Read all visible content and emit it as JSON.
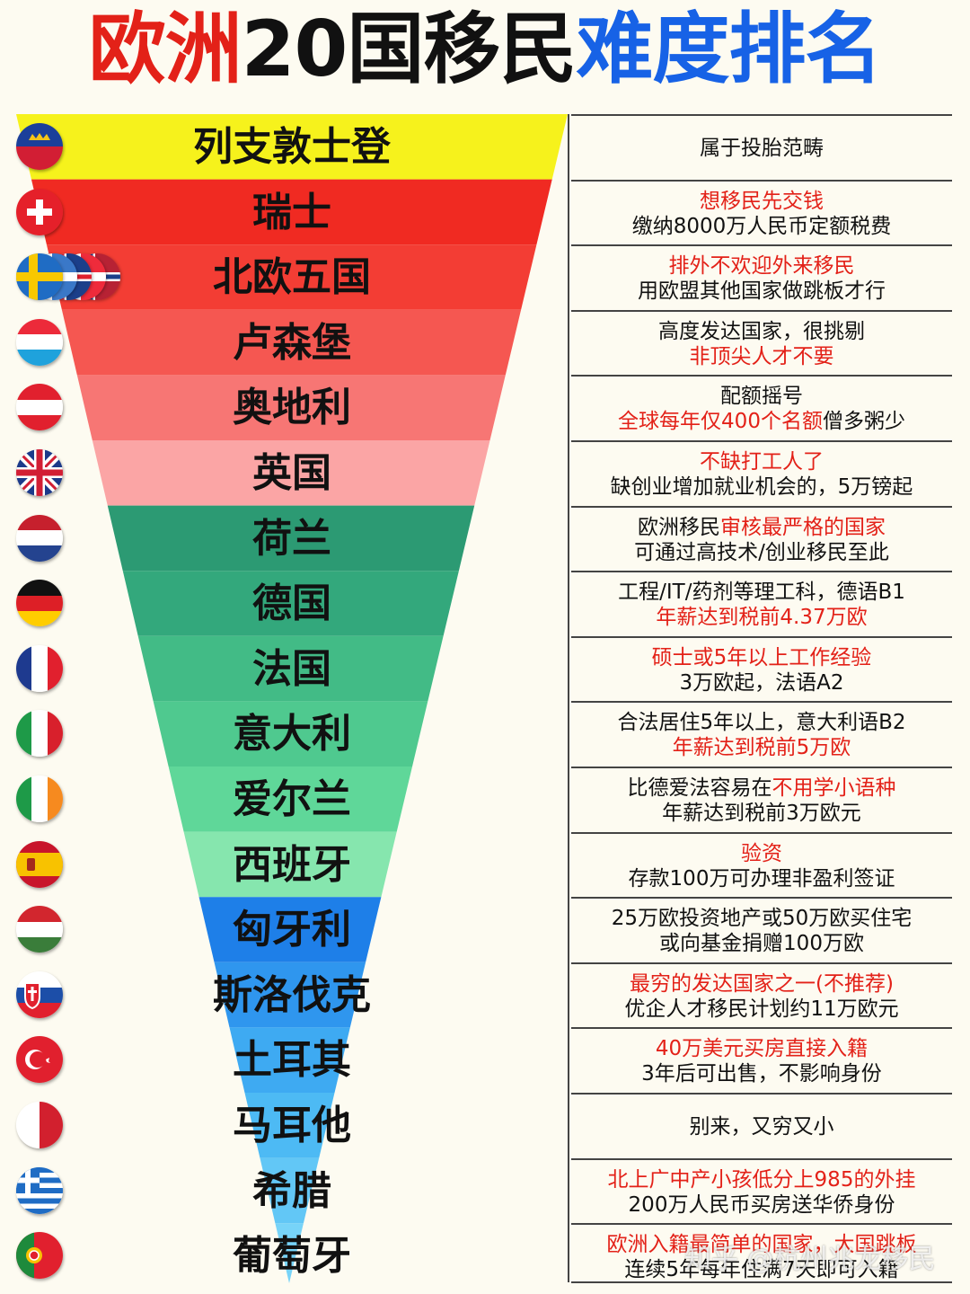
{
  "title": {
    "part1": "欧洲",
    "part2": "20国移民",
    "part3": "难度排名"
  },
  "rows": [
    {
      "country": "列支敦士登",
      "flag": "liechtenstein",
      "lines": [
        {
          "segs": [
            {
              "t": "属于投胎范畴",
              "red": false
            }
          ]
        }
      ]
    },
    {
      "country": "瑞士",
      "flag": "switzerland",
      "lines": [
        {
          "segs": [
            {
              "t": "想移民先交钱",
              "red": true
            }
          ]
        },
        {
          "segs": [
            {
              "t": "缴纳8000万人民币定额税费",
              "red": false
            }
          ]
        }
      ]
    },
    {
      "country": "北欧五国",
      "flag": "nordic",
      "lines": [
        {
          "segs": [
            {
              "t": "排外不欢迎外来移民",
              "red": true
            }
          ]
        },
        {
          "segs": [
            {
              "t": "用欧盟其他国家做跳板才行",
              "red": false
            }
          ]
        }
      ]
    },
    {
      "country": "卢森堡",
      "flag": "luxembourg",
      "lines": [
        {
          "segs": [
            {
              "t": "高度发达国家，很挑剔",
              "red": false
            }
          ]
        },
        {
          "segs": [
            {
              "t": "非顶尖人才不要",
              "red": true
            }
          ]
        }
      ]
    },
    {
      "country": "奥地利",
      "flag": "austria",
      "lines": [
        {
          "segs": [
            {
              "t": "配额摇号",
              "red": false
            }
          ]
        },
        {
          "segs": [
            {
              "t": "全球每年仅400个名额",
              "red": true
            },
            {
              "t": "僧多粥少",
              "red": false
            }
          ]
        }
      ]
    },
    {
      "country": "英国",
      "flag": "uk",
      "lines": [
        {
          "segs": [
            {
              "t": "不缺打工人了",
              "red": true
            }
          ]
        },
        {
          "segs": [
            {
              "t": "缺创业增加就业机会的，5万镑起",
              "red": false
            }
          ]
        }
      ]
    },
    {
      "country": "荷兰",
      "flag": "netherlands",
      "lines": [
        {
          "segs": [
            {
              "t": "欧洲移民",
              "red": false
            },
            {
              "t": "审核最严格的国家",
              "red": true
            }
          ]
        },
        {
          "segs": [
            {
              "t": "可通过高技术/创业移民至此",
              "red": false
            }
          ]
        }
      ]
    },
    {
      "country": "德国",
      "flag": "germany",
      "lines": [
        {
          "segs": [
            {
              "t": "工程/IT/药剂等理工科，德语B1",
              "red": false
            }
          ]
        },
        {
          "segs": [
            {
              "t": "年薪达到税前4.37万欧",
              "red": true
            }
          ]
        }
      ]
    },
    {
      "country": "法国",
      "flag": "france",
      "lines": [
        {
          "segs": [
            {
              "t": "硕士或5年以上工作经验",
              "red": true
            }
          ]
        },
        {
          "segs": [
            {
              "t": "3万欧起，法语A2",
              "red": false
            }
          ]
        }
      ]
    },
    {
      "country": "意大利",
      "flag": "italy",
      "lines": [
        {
          "segs": [
            {
              "t": "合法居住5年以上，意大利语B2",
              "red": false
            }
          ]
        },
        {
          "segs": [
            {
              "t": "年薪达到税前5万欧",
              "red": true
            }
          ]
        }
      ]
    },
    {
      "country": "爱尔兰",
      "flag": "ireland",
      "lines": [
        {
          "segs": [
            {
              "t": "比德爱法容易在",
              "red": false
            },
            {
              "t": "不用学小语种",
              "red": true
            }
          ]
        },
        {
          "segs": [
            {
              "t": "年薪达到税前3万欧元",
              "red": false
            }
          ]
        }
      ]
    },
    {
      "country": "西班牙",
      "flag": "spain",
      "lines": [
        {
          "segs": [
            {
              "t": "验资",
              "red": true
            }
          ]
        },
        {
          "segs": [
            {
              "t": "存款100万可办理非盈利签证",
              "red": false
            }
          ]
        }
      ]
    },
    {
      "country": "匈牙利",
      "flag": "hungary",
      "lines": [
        {
          "segs": [
            {
              "t": "25万欧投资地产或50万欧买住宅",
              "red": false
            }
          ]
        },
        {
          "segs": [
            {
              "t": "或向基金捐赠100万欧",
              "red": false
            }
          ]
        }
      ]
    },
    {
      "country": "斯洛伐克",
      "flag": "slovakia",
      "lines": [
        {
          "segs": [
            {
              "t": "最穷的发达国家之一(不推荐)",
              "red": true
            }
          ]
        },
        {
          "segs": [
            {
              "t": "优企人才移民计划约11万欧元",
              "red": false
            }
          ]
        }
      ]
    },
    {
      "country": "土耳其",
      "flag": "turkey",
      "lines": [
        {
          "segs": [
            {
              "t": "40万美元买房直接入籍",
              "red": true
            }
          ]
        },
        {
          "segs": [
            {
              "t": "3年后可出售，不影响身份",
              "red": false
            }
          ]
        }
      ]
    },
    {
      "country": "马耳他",
      "flag": "malta",
      "lines": [
        {
          "segs": [
            {
              "t": "别来，又穷又小",
              "red": false
            }
          ]
        }
      ]
    },
    {
      "country": "希腊",
      "flag": "greece",
      "lines": [
        {
          "segs": [
            {
              "t": "北上广中产小孩低分上985的外挂",
              "red": true
            }
          ]
        },
        {
          "segs": [
            {
              "t": "200万人民币买房送华侨身份",
              "red": false
            }
          ]
        }
      ]
    },
    {
      "country": "葡萄牙",
      "flag": "portugal",
      "lines": [
        {
          "segs": [
            {
              "t": "欧洲入籍最简单的国家，大国跳板",
              "red": true
            }
          ]
        },
        {
          "segs": [
            {
              "t": "连续5年每年住满7天即可入籍",
              "red": false
            }
          ]
        }
      ]
    }
  ],
  "band_colors": [
    "#f6f21c",
    "#f02a22",
    "#f33d34",
    "#f55751",
    "#f77674",
    "#fba5a5",
    "#2c9a73",
    "#33a87c",
    "#42bb86",
    "#4fc98f",
    "#5fd799",
    "#86e6ae",
    "#1e7fe8",
    "#2f96ee",
    "#3eaaf2",
    "#4dbaf4",
    "#62c7f6",
    "#77d3f8"
  ],
  "watermark": "知乎 @杭州兆龙移民"
}
